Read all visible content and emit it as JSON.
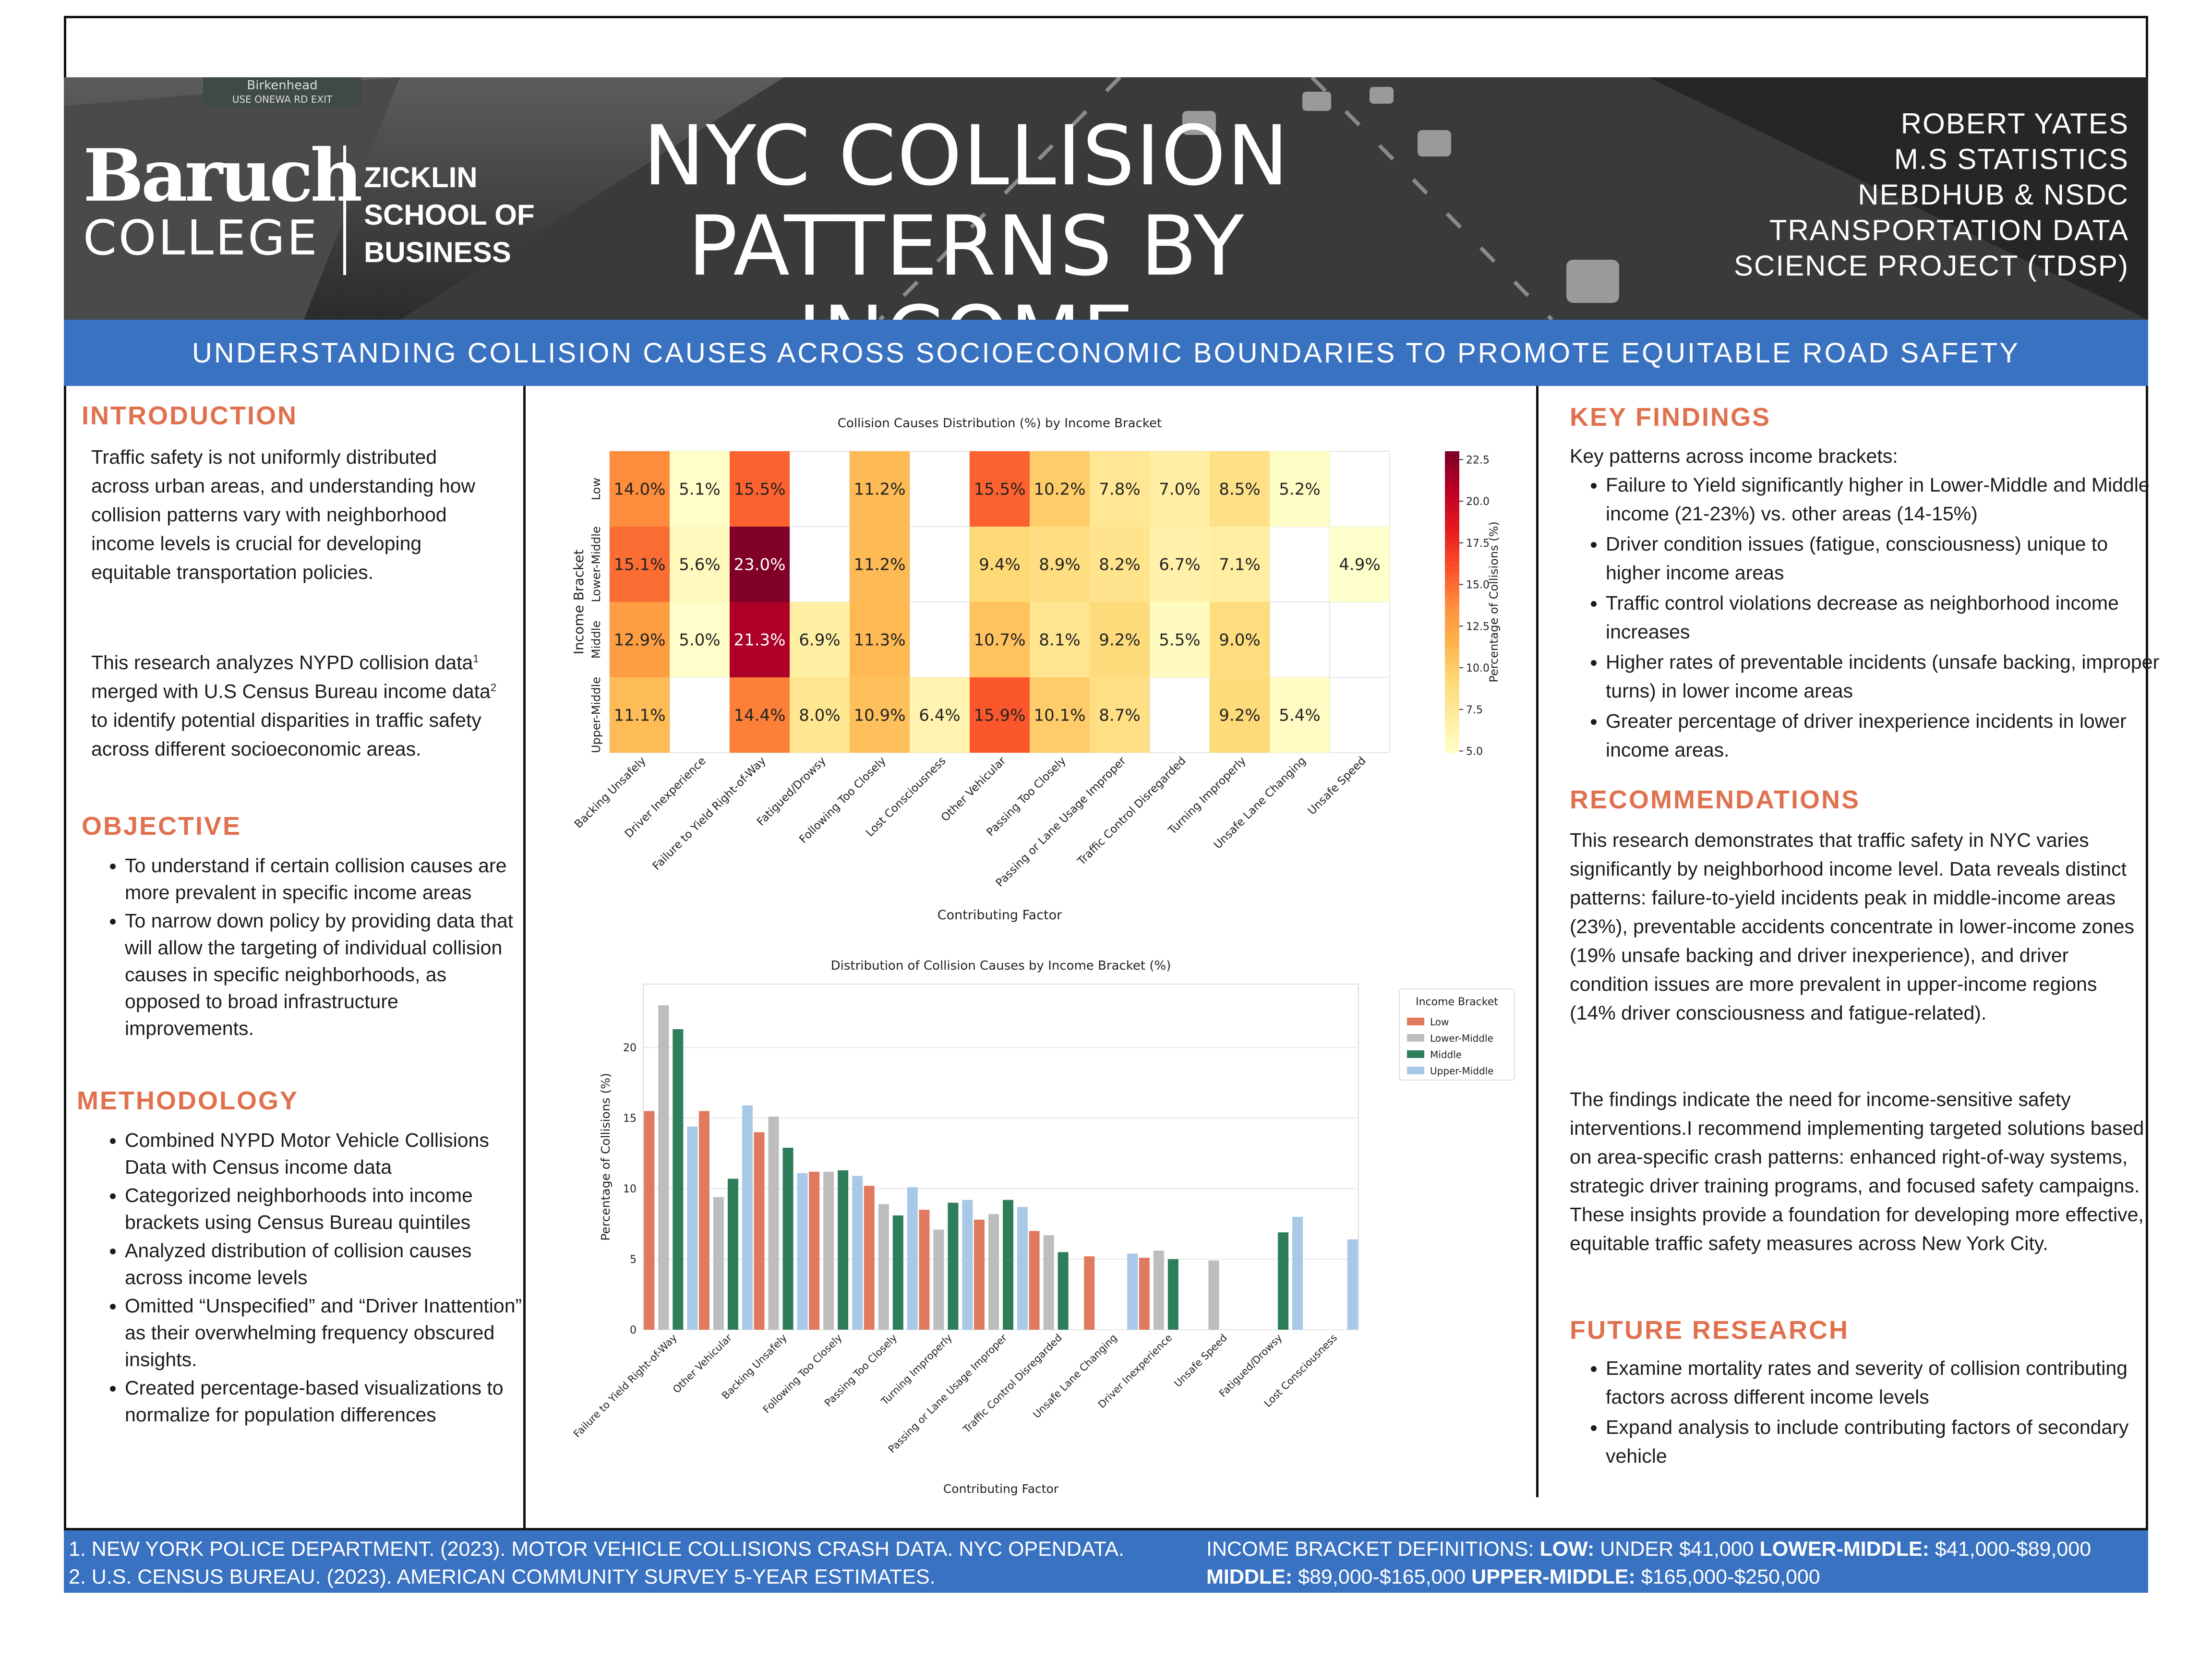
{
  "header": {
    "brand": {
      "baruch": "Baruch",
      "college": "COLLEGE",
      "school_lines": [
        "ZICKLIN",
        "SCHOOL OF",
        "BUSINESS"
      ]
    },
    "title_lines": [
      "NYC COLLISION",
      "PATTERNS BY INCOME"
    ],
    "author_lines": [
      "ROBERT YATES",
      "M.S STATISTICS",
      "NEBDHUB & NSDC",
      "TRANSPORTATION DATA",
      "SCIENCE PROJECT (TDSP)"
    ],
    "road_sign": {
      "line1": "Birkenhead",
      "line2": "USE ONEWA RD EXIT"
    },
    "subtitle": "UNDERSTANDING COLLISION CAUSES ACROSS SOCIOECONOMIC BOUNDARIES TO PROMOTE EQUITABLE ROAD SAFETY"
  },
  "left": {
    "intro_heading": "INTRODUCTION",
    "intro_p1": "Traffic safety is not uniformly distributed across urban areas, and understanding how collision patterns vary with neighborhood income levels is crucial for developing equitable transportation policies.",
    "intro_p2_a": "This research analyzes NYPD collision data",
    "intro_p2_sup1": "1",
    "intro_p2_b": " merged with U.S Census Bureau income data",
    "intro_p2_sup2": "2",
    "intro_p2_c": " to identify potential disparities in traffic safety across different socioeconomic areas.",
    "objective_heading": "OBJECTIVE",
    "objectives": [
      "To understand if certain collision causes are more prevalent in specific income areas",
      "To narrow down policy by providing data that will allow the targeting of individual collision causes in specific neighborhoods, as opposed to broad infrastructure improvements."
    ],
    "method_heading": "METHODOLOGY",
    "methods": [
      "Combined NYPD Motor Vehicle Collisions Data  with Census income data",
      "Categorized neighborhoods into income brackets using Census Bureau quintiles",
      "Analyzed distribution of collision causes across income levels",
      "Omitted “Unspecified” and “Driver Inattention” as their overwhelming frequency obscured insights.",
      "Created percentage-based visualizations to normalize for population differences"
    ]
  },
  "right": {
    "findings_heading": "KEY FINDINGS",
    "findings_intro": "Key patterns across income brackets:",
    "findings": [
      "Failure to Yield significantly higher in Lower-Middle and Middle income (21-23%) vs. other areas (14-15%)",
      "Driver condition issues (fatigue, consciousness) unique to higher income areas",
      "Traffic control violations decrease as neighborhood income increases",
      "Higher rates of preventable incidents (unsafe backing, improper turns) in lower income areas",
      "Greater percentage of driver inexperience incidents in lower income areas."
    ],
    "recs_heading": "RECOMMENDATIONS",
    "recs_p1": "This research demonstrates that traffic safety in NYC varies significantly by neighborhood income level. Data reveals distinct patterns: failure-to-yield incidents peak in middle-income areas (23%), preventable accidents concentrate in lower-income zones (19% unsafe backing and driver inexperience), and driver condition issues are more prevalent in upper-income regions (14% driver consciousness and fatigue-related).",
    "recs_p2": "The findings indicate the need for income-sensitive safety interventions.I recommend implementing targeted solutions based on area-specific crash patterns: enhanced right-of-way systems, strategic driver training programs, and focused safety campaigns. These insights provide a foundation for developing more effective, equitable traffic safety measures across New York City.",
    "future_heading": "FUTURE RESEARCH",
    "future": [
      "Examine mortality rates and severity of collision contributing factors across different income levels",
      "Expand analysis to include contributing factors of secondary vehicle"
    ]
  },
  "footer": {
    "ref1": "1. NEW YORK POLICE DEPARTMENT. (2023). MOTOR VEHICLE COLLISIONS CRASH DATA. NYC OPENDATA.",
    "ref2": "2. U.S. CENSUS BUREAU. (2023). AMERICAN COMMUNITY SURVEY 5-YEAR ESTIMATES.",
    "def_prefix": "INCOME BRACKET DEFINITIONS: ",
    "defs": [
      {
        "label": "LOW:",
        "range": " UNDER $41,000 "
      },
      {
        "label": "LOWER-MIDDLE:",
        "range": " $41,000-$89,000"
      },
      {
        "label": "MIDDLE:",
        "range": " $89,000-$165,000 "
      },
      {
        "label": "UPPER-MIDDLE:",
        "range": " $165,000-$250,000"
      }
    ]
  },
  "chart_data": [
    {
      "type": "heatmap",
      "title": "Collision Causes Distribution (%) by Income Bracket",
      "xlabel": "Contributing Factor",
      "ylabel": "Income Bracket",
      "colorbar_label": "Percentage of Collisions (%)",
      "colorbar_ticks": [
        "5.0",
        "7.5",
        "10.0",
        "12.5",
        "15.0",
        "17.5",
        "20.0",
        "22.5"
      ],
      "value_range": [
        4.9,
        23.0
      ],
      "columns": [
        "Backing Unsafely",
        "Driver Inexperience",
        "Failure to Yield Right-of-Way",
        "Fatigued/Drowsy",
        "Following Too Closely",
        "Lost Consciousness",
        "Other Vehicular",
        "Passing Too Closely",
        "Passing or Lane Usage Improper",
        "Traffic Control Disregarded",
        "Turning Improperly",
        "Unsafe Lane Changing",
        "Unsafe Speed"
      ],
      "rows": [
        "Low",
        "Lower-Middle",
        "Middle",
        "Upper-Middle"
      ],
      "values": [
        [
          14.0,
          5.1,
          15.5,
          null,
          11.2,
          null,
          15.5,
          10.2,
          7.8,
          7.0,
          8.5,
          5.2,
          null
        ],
        [
          15.1,
          5.6,
          23.0,
          null,
          11.2,
          null,
          9.4,
          8.9,
          8.2,
          6.7,
          7.1,
          null,
          4.9
        ],
        [
          12.9,
          5.0,
          21.3,
          6.9,
          11.3,
          null,
          10.7,
          8.1,
          9.2,
          5.5,
          9.0,
          null,
          null
        ],
        [
          11.1,
          null,
          14.4,
          8.0,
          10.9,
          6.4,
          15.9,
          10.1,
          8.7,
          null,
          9.2,
          5.4,
          null
        ]
      ],
      "cell_labels": [
        [
          "14.0%",
          "5.1%",
          "15.5%",
          "",
          "11.2%",
          "",
          "15.5%",
          "10.2%",
          "7.8%",
          "7.0%",
          "8.5%",
          "5.2%",
          ""
        ],
        [
          "15.1%",
          "5.6%",
          "23.0%",
          "",
          "11.2%",
          "",
          "9.4%",
          "8.9%",
          "8.2%",
          "6.7%",
          "7.1%",
          "",
          "4.9%"
        ],
        [
          "12.9%",
          "5.0%",
          "21.3%",
          "6.9%",
          "11.3%",
          "",
          "10.7%",
          "8.1%",
          "9.2%",
          "5.5%",
          "9.0%",
          "",
          ""
        ],
        [
          "11.1%",
          "",
          "14.4%",
          "8.0%",
          "10.9%",
          "6.4%",
          "15.9%",
          "10.1%",
          "8.7%",
          "",
          "9.2%",
          "5.4%",
          ""
        ]
      ]
    },
    {
      "type": "bar",
      "title": "Distribution of Collision Causes by Income Bracket (%)",
      "xlabel": "Contributing Factor",
      "ylabel": "Percentage of Collisions (%)",
      "ylim": [
        0,
        24.5
      ],
      "yticks": [
        "0",
        "5",
        "10",
        "15",
        "20"
      ],
      "legend_title": "Income Bracket",
      "legend_position": "top-right",
      "categories": [
        "Failure to Yield Right-of-Way",
        "Other Vehicular",
        "Backing Unsafely",
        "Following Too Closely",
        "Passing Too Closely",
        "Turning Improperly",
        "Passing or Lane Usage Improper",
        "Traffic Control Disregarded",
        "Unsafe Lane Changing",
        "Driver Inexperience",
        "Unsafe Speed",
        "Fatigued/Drowsy",
        "Lost Consciousness"
      ],
      "series": [
        {
          "name": "Low",
          "color": "#e07a5f",
          "values": [
            15.5,
            15.5,
            14.0,
            11.2,
            10.2,
            8.5,
            7.8,
            7.0,
            5.2,
            5.1,
            null,
            null,
            null
          ]
        },
        {
          "name": "Lower-Middle",
          "color": "#bdbdbd",
          "values": [
            23.0,
            9.4,
            15.1,
            11.2,
            8.9,
            7.1,
            8.2,
            6.7,
            null,
            5.6,
            4.9,
            null,
            null
          ]
        },
        {
          "name": "Middle",
          "color": "#2e7d5b",
          "values": [
            21.3,
            10.7,
            12.9,
            11.3,
            8.1,
            9.0,
            9.2,
            5.5,
            null,
            5.0,
            null,
            6.9,
            null
          ]
        },
        {
          "name": "Upper-Middle",
          "color": "#a8c8e8",
          "values": [
            14.4,
            15.9,
            11.1,
            10.9,
            10.1,
            9.2,
            8.7,
            null,
            5.4,
            null,
            null,
            8.0,
            6.4
          ]
        }
      ]
    }
  ]
}
